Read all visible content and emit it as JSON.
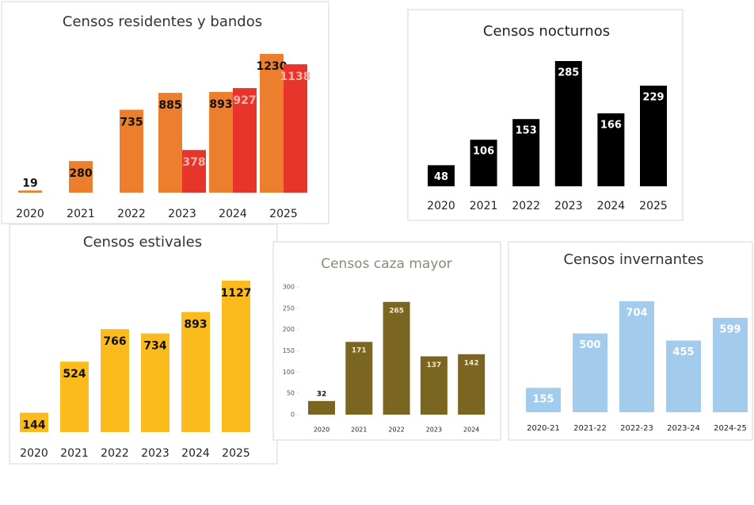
{
  "chart_data": [
    {
      "type": "bar",
      "title": "Censos residentes y bandos",
      "categories": [
        "2020",
        "2021",
        "2022",
        "2023",
        "2024",
        "2025"
      ],
      "series": [
        {
          "color": "#ec7f2e",
          "values": [
            19,
            280,
            735,
            885,
            893,
            1230
          ]
        },
        {
          "color": "#e8352b",
          "values": [
            null,
            null,
            null,
            378,
            927,
            1138
          ]
        }
      ]
    },
    {
      "type": "bar",
      "title": "Censos nocturnos",
      "categories": [
        "2020",
        "2021",
        "2022",
        "2023",
        "2024",
        "2025"
      ],
      "values": [
        48,
        106,
        153,
        285,
        166,
        229
      ],
      "color": "#000000"
    },
    {
      "type": "bar",
      "title": "Censos estivales",
      "categories": [
        "2020",
        "2021",
        "2022",
        "2023",
        "2024",
        "2025"
      ],
      "values": [
        144,
        524,
        766,
        734,
        893,
        1127
      ],
      "color": "#fbbb1c"
    },
    {
      "type": "bar",
      "title": "Censos caza mayor",
      "categories": [
        "2020",
        "2021",
        "2022",
        "2023",
        "2024"
      ],
      "values": [
        32,
        171,
        265,
        137,
        142
      ],
      "color": "#7b6621",
      "ylim": [
        0,
        300
      ],
      "yticks": [
        0,
        50,
        100,
        150,
        200,
        250,
        300
      ]
    },
    {
      "type": "bar",
      "title": "Censos invernantes",
      "categories": [
        "2020-21",
        "2021-22",
        "2022-23",
        "2023-24",
        "2024-25"
      ],
      "values": [
        155,
        500,
        704,
        455,
        599
      ],
      "color": "#a3cbec"
    }
  ]
}
